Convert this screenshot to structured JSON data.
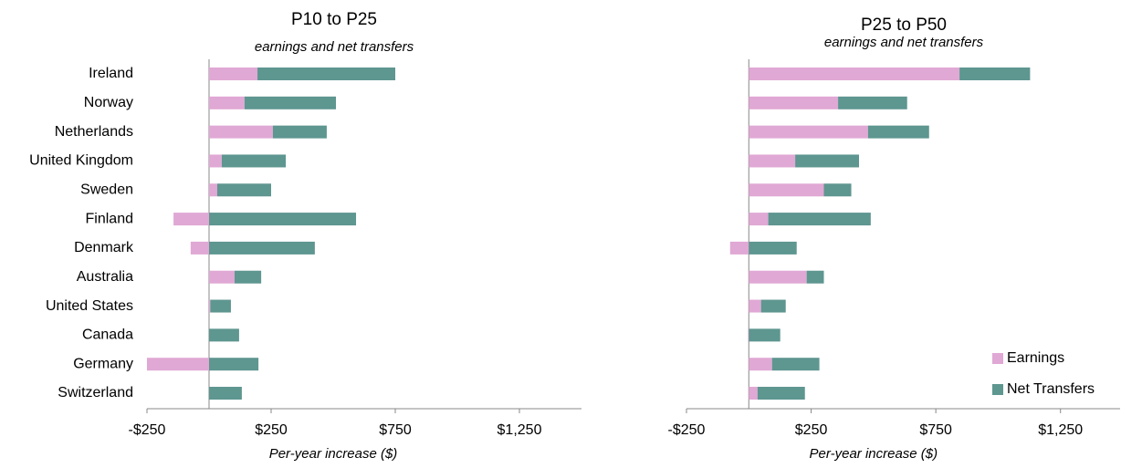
{
  "chart_data": [
    {
      "type": "bar",
      "orientation": "horizontal",
      "stacked": true,
      "title": "P10 to P25",
      "subtitle": "earnings and net transfers",
      "x_label": "Per-year increase ($)",
      "categories": [
        "Ireland",
        "Norway",
        "Netherlands",
        "United Kingdom",
        "Sweden",
        "Finland",
        "Denmark",
        "Australia",
        "United States",
        "Canada",
        "Germany",
        "Switzerland"
      ],
      "series": [
        {
          "color": "#e0a8d4",
          "values": [
            195,
            143,
            257,
            51,
            33,
            -143,
            -74,
            103,
            5,
            0,
            -250,
            0
          ]
        },
        {
          "color": "#5e9690",
          "values": [
            555,
            368,
            217,
            258,
            217,
            592,
            426,
            107,
            83,
            121,
            199,
            132
          ]
        }
      ],
      "xlim": [
        -250,
        1500
      ],
      "xticks": [
        {
          "value": -250,
          "label": "-$250"
        },
        {
          "value": 250,
          "label": "$250"
        },
        {
          "value": 750,
          "label": "$750"
        },
        {
          "value": 1250,
          "label": "$1,250"
        }
      ]
    },
    {
      "type": "bar",
      "orientation": "horizontal",
      "stacked": true,
      "title": "P25 to P50",
      "subtitle": "earnings and net transfers",
      "x_label": "Per-year increase ($)",
      "series": [
        {
          "name": "Earnings",
          "color": "#e0a8d4",
          "values": [
            845,
            358,
            478,
            186,
            301,
            78,
            -75,
            232,
            49,
            -3,
            93,
            35
          ]
        },
        {
          "name": "Net Transfers",
          "color": "#5e9690",
          "values": [
            283,
            277,
            245,
            256,
            110,
            411,
            192,
            69,
            99,
            126,
            190,
            190
          ]
        }
      ],
      "xlim": [
        -250,
        1500
      ],
      "xticks": [
        {
          "value": -250,
          "label": "-$250"
        },
        {
          "value": 250,
          "label": "$250"
        },
        {
          "value": 750,
          "label": "$750"
        },
        {
          "value": 1250,
          "label": "$1,250"
        }
      ],
      "legend": "lower right"
    }
  ]
}
